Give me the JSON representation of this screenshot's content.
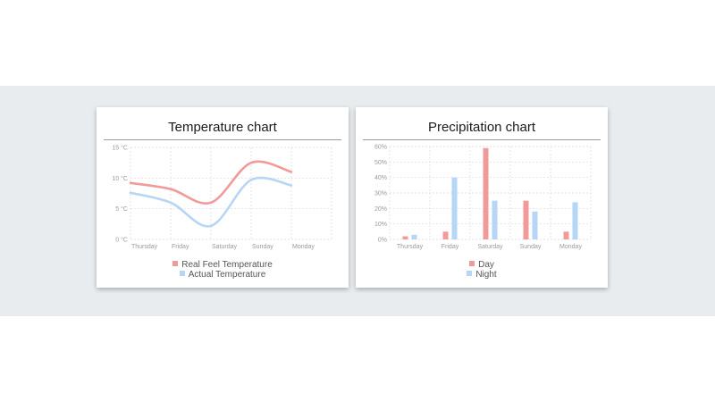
{
  "colors": {
    "background_band": "#e9ecef",
    "card": "#ffffff",
    "red": "#f09a9a",
    "blue": "#b5d6f5",
    "grid": "#d9d9d9"
  },
  "chart_data": [
    {
      "type": "line",
      "title": "Temperature chart",
      "categories": [
        "Thursday",
        "Friday",
        "Saturday",
        "Sunday",
        "Monday"
      ],
      "ytick_labels": [
        "15 °C",
        "10 °C",
        "5 °C",
        "0 °C"
      ],
      "ylim": [
        0,
        15
      ],
      "grid": true,
      "legend": "bottom-center",
      "series": [
        {
          "name": "Real Feel Temperature",
          "color": "#f09a9a",
          "values": [
            9.2,
            8.2,
            6.0,
            12.5,
            11.0
          ]
        },
        {
          "name": "Actual Temperature",
          "color": "#b5d6f5",
          "values": [
            7.6,
            6.0,
            2.2,
            9.7,
            8.8
          ]
        }
      ]
    },
    {
      "type": "bar",
      "title": "Precipitation chart",
      "categories": [
        "Thursday",
        "Friday",
        "Saturday",
        "Sunday",
        "Monday"
      ],
      "ytick_labels": [
        "60%",
        "50%",
        "40%",
        "30%",
        "20%",
        "10%",
        "0%"
      ],
      "ylim": [
        0,
        60
      ],
      "grid": true,
      "legend": "bottom-center",
      "series": [
        {
          "name": "Day",
          "color": "#f09a9a",
          "values": [
            2,
            5,
            59,
            25,
            5
          ]
        },
        {
          "name": "Night",
          "color": "#b5d6f5",
          "values": [
            3,
            40,
            25,
            18,
            24
          ]
        }
      ]
    }
  ]
}
